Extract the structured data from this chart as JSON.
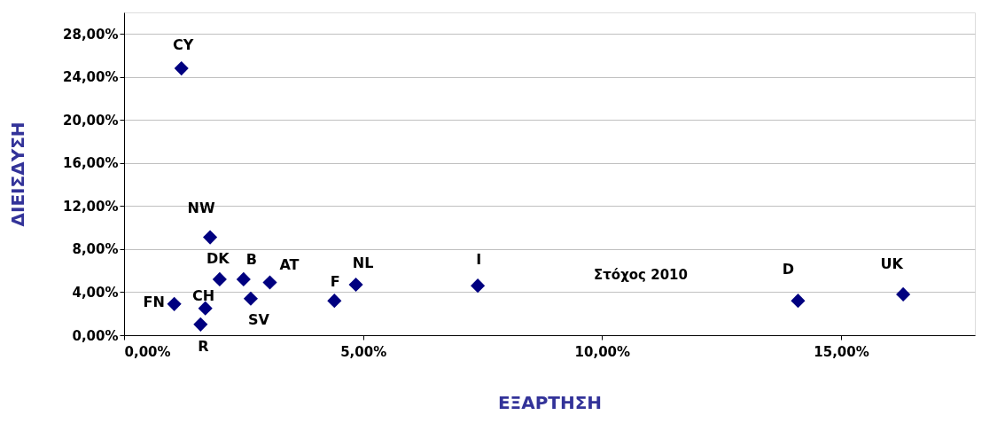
{
  "chart_data": {
    "type": "scatter",
    "xlabel": "ΕΞΑΡΤΗΣΗ",
    "ylabel": "ΔΙΕΙΣΔΥΣΗ",
    "x": [
      1.2,
      1.8,
      2.0,
      2.5,
      3.05,
      2.65,
      1.05,
      1.7,
      1.6,
      4.4,
      4.85,
      7.4,
      14.1,
      16.3
    ],
    "series": [
      {
        "color": "#000080",
        "values": [
          24.8,
          9.1,
          5.2,
          5.2,
          4.9,
          3.4,
          2.9,
          2.5,
          1.0,
          3.2,
          4.7,
          4.6,
          3.2,
          3.8
        ],
        "value_labels": [
          "CY",
          "NW",
          "DK",
          "B",
          "AT",
          "SV",
          "FN",
          "CH",
          "R",
          "F",
          "NL",
          "I",
          "D",
          "UK"
        ]
      }
    ],
    "xlim": [
      0,
      17.8
    ],
    "ylim": [
      0,
      30
    ],
    "xticks": [
      {
        "value": 0,
        "label": "0,00%"
      },
      {
        "value": 5,
        "label": "5,00%"
      },
      {
        "value": 10,
        "label": "10,00%"
      },
      {
        "value": 15,
        "label": "15,00%"
      }
    ],
    "yticks": [
      {
        "value": 0,
        "label": "0,00%"
      },
      {
        "value": 4,
        "label": "4,00%"
      },
      {
        "value": 8,
        "label": "8,00%"
      },
      {
        "value": 12,
        "label": "12,00%"
      },
      {
        "value": 16,
        "label": "16,00%"
      },
      {
        "value": 20,
        "label": "20,00%"
      },
      {
        "value": 24,
        "label": "24,00%"
      },
      {
        "value": 28,
        "label": "28,00%"
      }
    ],
    "grid": "y",
    "marker": "diamond",
    "annotations": [
      "Στόχος 2010"
    ]
  }
}
